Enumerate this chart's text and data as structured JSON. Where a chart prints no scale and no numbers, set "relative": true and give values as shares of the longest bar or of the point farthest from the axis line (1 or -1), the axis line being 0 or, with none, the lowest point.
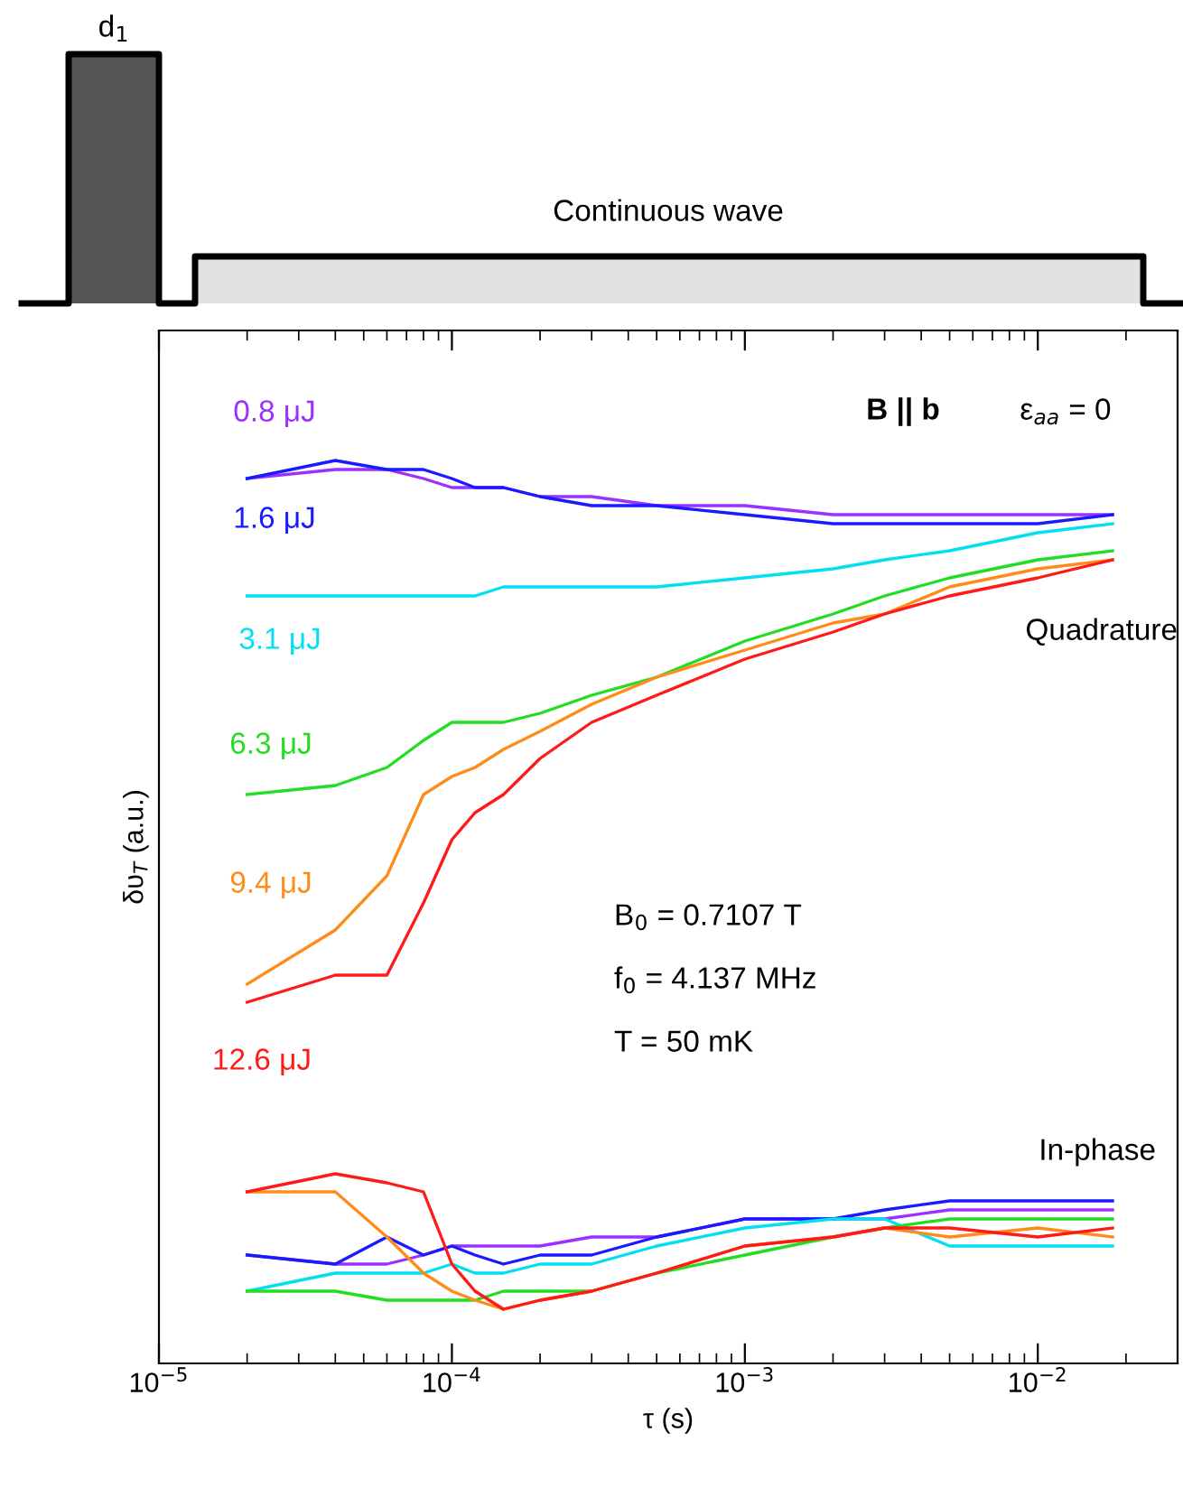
{
  "chart_data": {
    "type": "line",
    "xlabel": "τ (s)",
    "ylabel": "δυ$_{T}$ (a.u.)",
    "relative": true,
    "log": "x",
    "xlim": [
      1e-05,
      0.03
    ],
    "xticks": [
      {
        "value": 1e-05,
        "label": "10$^{−5}$"
      },
      {
        "value": 0.0001,
        "label": "10$^{−4}$"
      },
      {
        "value": 0.001,
        "label": "10$^{−3}$"
      },
      {
        "value": 0.01,
        "label": "10$^{−2}$"
      }
    ],
    "x": [
      2e-05,
      4e-05,
      6e-05,
      8e-05,
      0.0001,
      0.00012,
      0.00015,
      0.0002,
      0.0003,
      0.0005,
      0.001,
      0.002,
      0.003,
      0.005,
      0.01,
      0.018
    ],
    "series": [
      {
        "name": "0.8 μJ",
        "color": "#9b30ff",
        "values": [
          0.98,
          0.99,
          0.99,
          0.98,
          0.97,
          0.97,
          0.97,
          0.96,
          0.96,
          0.95,
          0.95,
          0.94,
          0.94,
          0.94,
          0.94,
          0.94
        ]
      },
      {
        "name": "1.6 μJ",
        "color": "#1a1aff",
        "values": [
          0.98,
          1.0,
          0.99,
          0.99,
          0.98,
          0.97,
          0.97,
          0.96,
          0.95,
          0.95,
          0.94,
          0.93,
          0.93,
          0.93,
          0.93,
          0.94
        ]
      },
      {
        "name": "3.1 μJ",
        "color": "#00e0f0",
        "values": [
          0.85,
          0.85,
          0.85,
          0.85,
          0.85,
          0.85,
          0.86,
          0.86,
          0.86,
          0.86,
          0.87,
          0.88,
          0.89,
          0.9,
          0.92,
          0.93
        ]
      },
      {
        "name": "6.3 μJ",
        "color": "#22dd22",
        "values": [
          0.63,
          0.64,
          0.66,
          0.69,
          0.71,
          0.71,
          0.71,
          0.72,
          0.74,
          0.76,
          0.8,
          0.83,
          0.85,
          0.87,
          0.89,
          0.9
        ]
      },
      {
        "name": "9.4 μJ",
        "color": "#ff8c1a",
        "values": [
          0.42,
          0.48,
          0.54,
          0.63,
          0.65,
          0.66,
          0.68,
          0.7,
          0.73,
          0.76,
          0.79,
          0.82,
          0.83,
          0.86,
          0.88,
          0.89
        ]
      },
      {
        "name": "12.6 μJ",
        "color": "#ff1a1a",
        "values": [
          0.4,
          0.43,
          0.43,
          0.51,
          0.58,
          0.61,
          0.63,
          0.67,
          0.71,
          0.74,
          0.78,
          0.81,
          0.83,
          0.85,
          0.87,
          0.89
        ]
      },
      {
        "color": "#9b30ff",
        "values": [
          0.12,
          0.11,
          0.11,
          0.12,
          0.13,
          0.13,
          0.13,
          0.13,
          0.14,
          0.14,
          0.16,
          0.16,
          0.16,
          0.17,
          0.17,
          0.17
        ]
      },
      {
        "color": "#1a1aff",
        "values": [
          0.12,
          0.11,
          0.14,
          0.12,
          0.13,
          0.12,
          0.11,
          0.12,
          0.12,
          0.14,
          0.16,
          0.16,
          0.17,
          0.18,
          0.18,
          0.18
        ]
      },
      {
        "color": "#00e0f0",
        "values": [
          0.08,
          0.1,
          0.1,
          0.1,
          0.11,
          0.1,
          0.1,
          0.11,
          0.11,
          0.13,
          0.15,
          0.16,
          0.16,
          0.13,
          0.13,
          0.13
        ]
      },
      {
        "color": "#22dd22",
        "values": [
          0.08,
          0.08,
          0.07,
          0.07,
          0.07,
          0.07,
          0.08,
          0.08,
          0.08,
          0.1,
          0.12,
          0.14,
          0.15,
          0.16,
          0.16,
          0.16
        ]
      },
      {
        "color": "#ff8c1a",
        "values": [
          0.19,
          0.19,
          0.14,
          0.1,
          0.08,
          0.07,
          0.06,
          0.07,
          0.08,
          0.1,
          0.13,
          0.14,
          0.15,
          0.14,
          0.15,
          0.14
        ]
      },
      {
        "color": "#ff1a1a",
        "values": [
          0.19,
          0.21,
          0.2,
          0.19,
          0.11,
          0.08,
          0.06,
          0.07,
          0.08,
          0.1,
          0.13,
          0.14,
          0.15,
          0.15,
          0.14,
          0.15
        ]
      }
    ],
    "annotations": [
      "d$_{1}$",
      "Continuous wave",
      "B || b",
      "ε$_{aa}$ = 0",
      "Quadrature",
      "In-phase",
      "B$_{0}$ = 0.7107 T",
      "f$_{0}$ = 4.137 MHz",
      "T = 50 mK"
    ]
  }
}
